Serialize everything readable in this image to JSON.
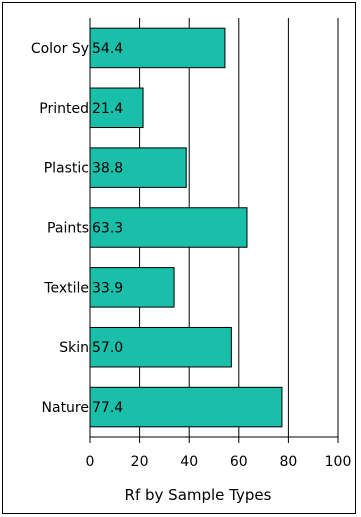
{
  "chart_data": {
    "type": "bar",
    "orientation": "horizontal",
    "categories": [
      "Color Sy",
      "Printed",
      "Plastic",
      "Paints",
      "Textile",
      "Skin",
      "Nature"
    ],
    "values": [
      54.4,
      21.4,
      38.8,
      63.3,
      33.9,
      57.0,
      77.4
    ],
    "data_labels": [
      "54.4",
      "21.4",
      "38.8",
      "63.3",
      "33.9",
      "57.0",
      "77.4"
    ],
    "xlabel": "Rf by Sample Types",
    "ylabel": "",
    "xlim": [
      0,
      100
    ],
    "xticks": [
      0,
      20,
      40,
      60,
      80,
      100
    ],
    "grid": "vertical",
    "bar_color": "#1abfaa",
    "legend": "none"
  }
}
